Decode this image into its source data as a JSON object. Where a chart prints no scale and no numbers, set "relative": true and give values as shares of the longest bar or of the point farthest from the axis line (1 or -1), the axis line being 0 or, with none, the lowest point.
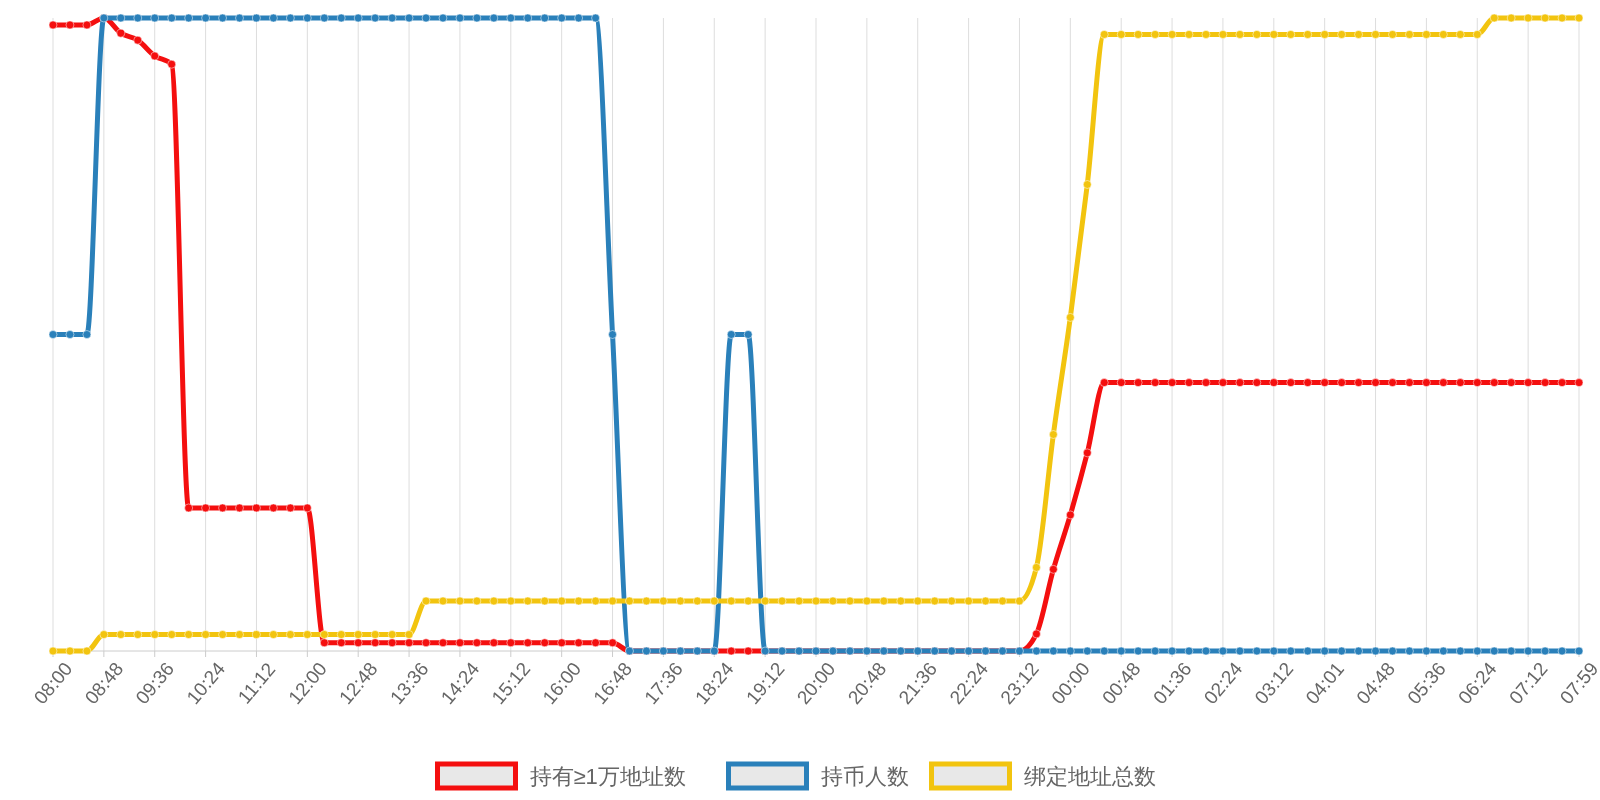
{
  "chart_data": {
    "type": "line",
    "relative": true,
    "grid": "x",
    "legend": "bottom",
    "marker": "circle",
    "line_style": "solid",
    "categories": [
      "08:00",
      null,
      null,
      "08:48",
      null,
      null,
      "09:36",
      null,
      null,
      "10:24",
      null,
      null,
      "11:12",
      null,
      null,
      "12:00",
      null,
      null,
      "12:48",
      null,
      null,
      "13:36",
      null,
      null,
      "14:24",
      null,
      null,
      "15:12",
      null,
      null,
      "16:00",
      null,
      null,
      "16:48",
      null,
      null,
      "17:36",
      null,
      null,
      "18:24",
      null,
      null,
      "19:12",
      null,
      null,
      "20:00",
      null,
      null,
      "20:48",
      null,
      null,
      "21:36",
      null,
      null,
      "22:24",
      null,
      null,
      "23:12",
      null,
      null,
      "00:00",
      null,
      null,
      "00:48",
      null,
      null,
      "01:36",
      null,
      null,
      "02:24",
      null,
      null,
      "03:12",
      null,
      null,
      "04:01",
      null,
      null,
      "04:48",
      null,
      null,
      "05:36",
      null,
      null,
      "06:24",
      null,
      null,
      "07:12",
      null,
      null,
      "07:59"
    ],
    "series": [
      {
        "name": "持有≥1万地址数",
        "color": "#f40f0f",
        "values": [
          0.989,
          0.989,
          0.989,
          1,
          0.976,
          0.965,
          0.94,
          0.927,
          0.226,
          0.226,
          0.226,
          0.226,
          0.226,
          0.226,
          0.226,
          0.226,
          0.013,
          0.013,
          0.013,
          0.013,
          0.013,
          0.013,
          0.013,
          0.013,
          0.013,
          0.013,
          0.013,
          0.013,
          0.013,
          0.013,
          0.013,
          0.013,
          0.013,
          0.013,
          0,
          0,
          0,
          0,
          0,
          0,
          0,
          0,
          0,
          0,
          0,
          0,
          0,
          0,
          0,
          0,
          0,
          0,
          0,
          0,
          0,
          0,
          0,
          0,
          0.027,
          0.129,
          0.215,
          0.313,
          0.424,
          0.424,
          0.424,
          0.424,
          0.424,
          0.424,
          0.424,
          0.424,
          0.424,
          0.424,
          0.424,
          0.424,
          0.424,
          0.424,
          0.424,
          0.424,
          0.424,
          0.424,
          0.424,
          0.424,
          0.424,
          0.424,
          0.424,
          0.424,
          0.424,
          0.424,
          0.424,
          0.424,
          0.424
        ]
      },
      {
        "name": "持币人数",
        "color": "#2a80ba",
        "values": [
          0.5,
          0.5,
          0.5,
          1,
          1,
          1,
          1,
          1,
          1,
          1,
          1,
          1,
          1,
          1,
          1,
          1,
          1,
          1,
          1,
          1,
          1,
          1,
          1,
          1,
          1,
          1,
          1,
          1,
          1,
          1,
          1,
          1,
          1,
          0.5,
          0,
          0,
          0,
          0,
          0,
          0,
          0.5,
          0.5,
          0,
          0,
          0,
          0,
          0,
          0,
          0,
          0,
          0,
          0,
          0,
          0,
          0,
          0,
          0,
          0,
          0,
          0,
          0,
          0,
          0,
          0,
          0,
          0,
          0,
          0,
          0,
          0,
          0,
          0,
          0,
          0,
          0,
          0,
          0,
          0,
          0,
          0,
          0,
          0,
          0,
          0,
          0,
          0,
          0,
          0,
          0,
          0,
          0
        ]
      },
      {
        "name": "绑定地址总数",
        "color": "#f2c40f",
        "values": [
          0,
          0,
          0,
          0.026,
          0.026,
          0.026,
          0.026,
          0.026,
          0.026,
          0.026,
          0.026,
          0.026,
          0.026,
          0.026,
          0.026,
          0.026,
          0.026,
          0.026,
          0.026,
          0.026,
          0.026,
          0.026,
          0.079,
          0.079,
          0.079,
          0.079,
          0.079,
          0.079,
          0.079,
          0.079,
          0.079,
          0.079,
          0.079,
          0.079,
          0.079,
          0.079,
          0.079,
          0.079,
          0.079,
          0.079,
          0.079,
          0.079,
          0.079,
          0.079,
          0.079,
          0.079,
          0.079,
          0.079,
          0.079,
          0.079,
          0.079,
          0.079,
          0.079,
          0.079,
          0.079,
          0.079,
          0.079,
          0.079,
          0.132,
          0.342,
          0.527,
          0.737,
          0.974,
          0.974,
          0.974,
          0.974,
          0.974,
          0.974,
          0.974,
          0.974,
          0.974,
          0.974,
          0.974,
          0.974,
          0.974,
          0.974,
          0.974,
          0.974,
          0.974,
          0.974,
          0.974,
          0.974,
          0.974,
          0.974,
          0.974,
          1,
          1,
          1,
          1,
          1,
          1
        ]
      }
    ]
  }
}
